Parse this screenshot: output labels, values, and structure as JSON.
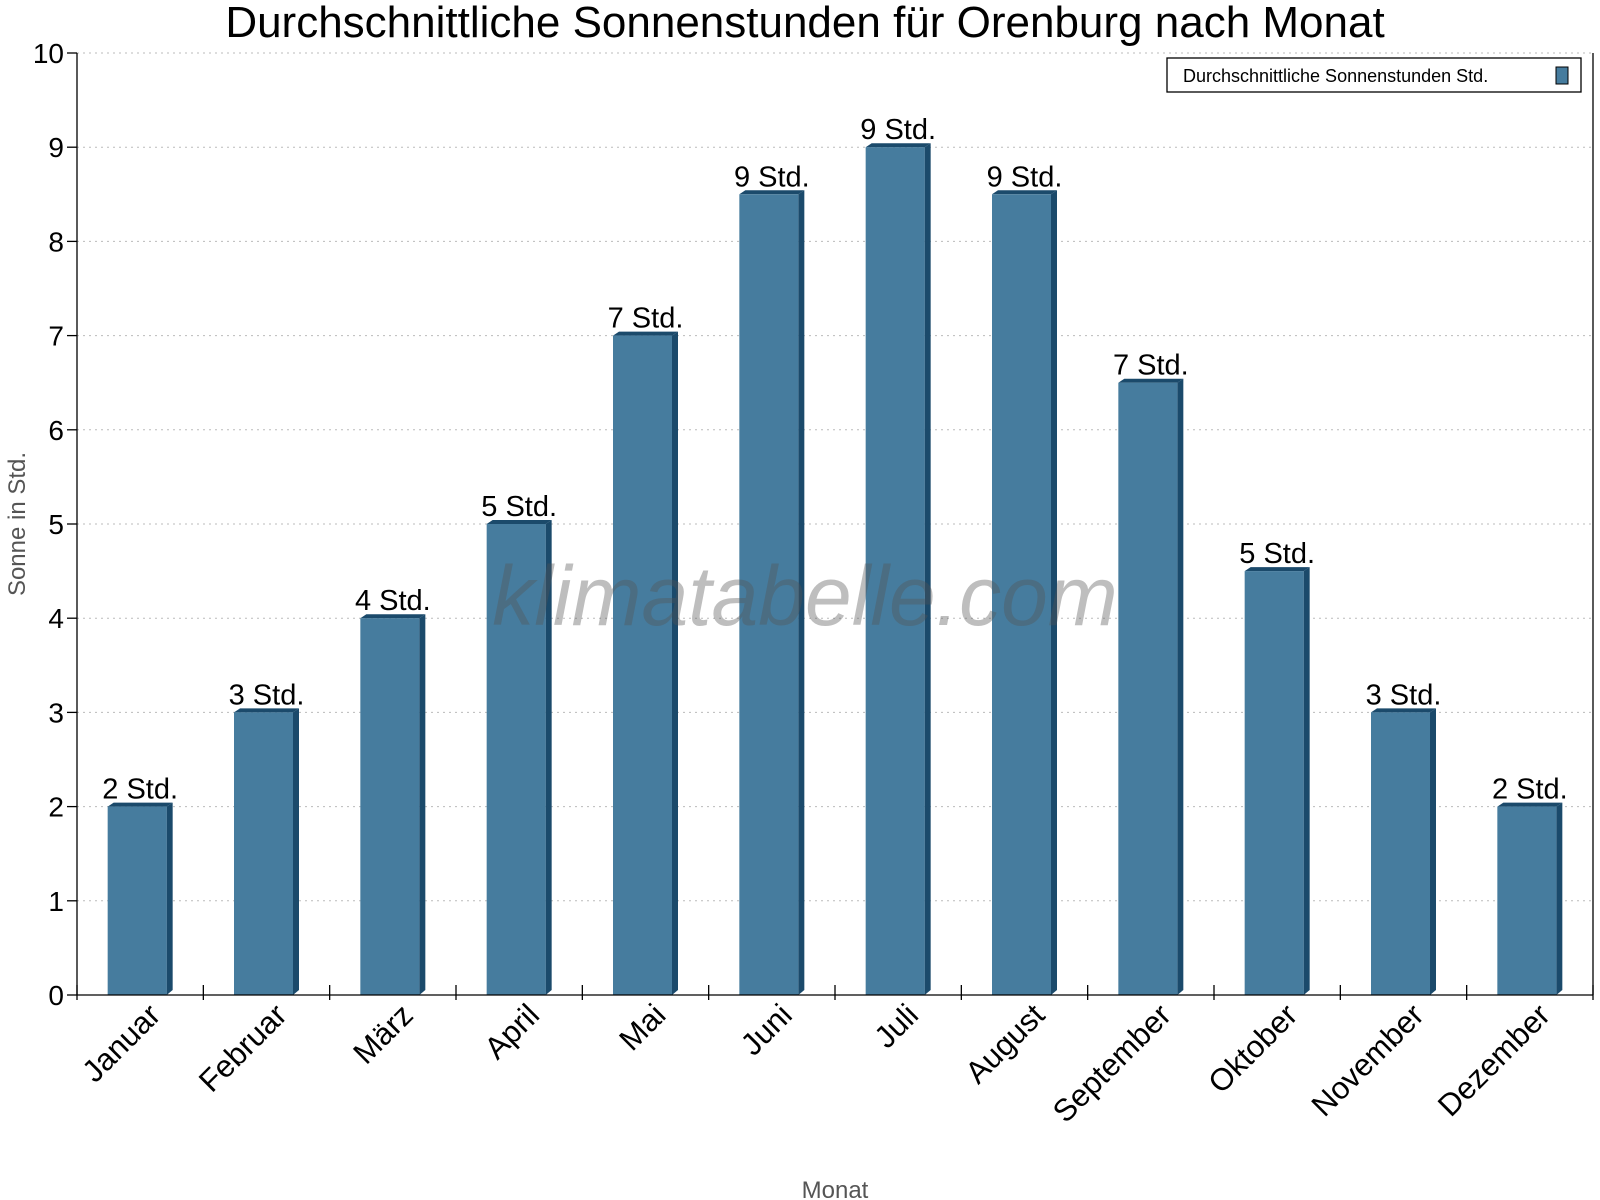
{
  "chart_data": {
    "type": "bar",
    "title": "Durchschnittliche Sonnenstunden für Orenburg nach Monat",
    "xlabel": "Monat",
    "ylabel": "Sonne in Std.",
    "ylim": [
      0,
      10
    ],
    "yticks": [
      "0",
      "1",
      "2",
      "3",
      "4",
      "5",
      "6",
      "7",
      "8",
      "9",
      "10"
    ],
    "grid": true,
    "legend_position": "top-right",
    "categories": [
      "Januar",
      "Februar",
      "März",
      "April",
      "Mai",
      "Juni",
      "Juli",
      "August",
      "September",
      "Oktober",
      "November",
      "Dezember"
    ],
    "series": [
      {
        "name": "Durchschnittliche Sonnenstunden Std.",
        "values": [
          2,
          3,
          4,
          5,
          7,
          8.5,
          9,
          8.5,
          6.5,
          4.5,
          3,
          2
        ],
        "labels": [
          "2 Std.",
          "3 Std.",
          "4 Std.",
          "5 Std.",
          "7 Std.",
          "9 Std.",
          "9 Std.",
          "9 Std.",
          "7 Std.",
          "5 Std.",
          "3 Std.",
          "2 Std."
        ]
      }
    ],
    "colors": {
      "bar": "#467c9e",
      "bar_side": "#1b4a6b"
    },
    "watermark": "klimatabelle.com"
  }
}
